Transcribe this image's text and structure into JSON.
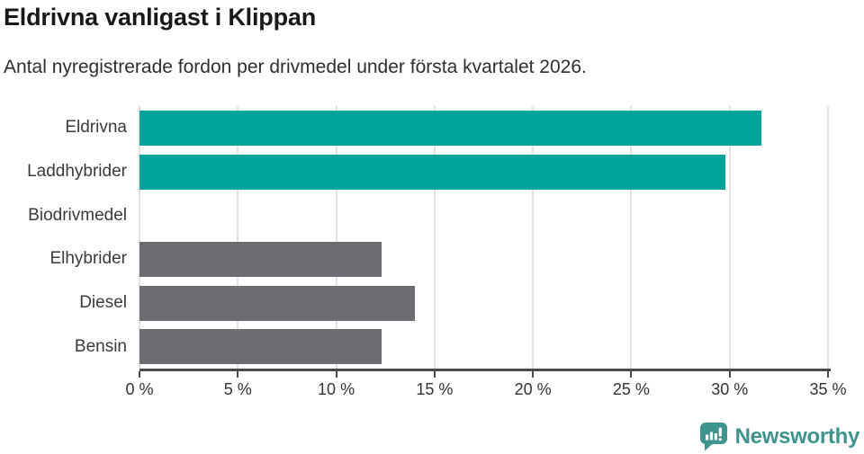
{
  "title": "Eldrivna vanligast i Klippan",
  "subtitle": "Antal nyregistrerade fordon per drivmedel under första kvartalet 2026.",
  "chart_data": {
    "type": "bar",
    "orientation": "horizontal",
    "title": "Eldrivna vanligast i Klippan",
    "subtitle": "Antal nyregistrerade fordon per drivmedel under första kvartalet 2026.",
    "categories": [
      "Eldrivna",
      "Laddhybrider",
      "Biodrivmedel",
      "Elhybrider",
      "Diesel",
      "Bensin"
    ],
    "values": [
      31.6,
      29.8,
      0,
      12.3,
      14.0,
      12.3
    ],
    "unit": "%",
    "xlim": [
      0,
      35
    ],
    "xticks": [
      0,
      5,
      10,
      15,
      20,
      25,
      30,
      35
    ],
    "xtick_labels": [
      "0 %",
      "5 %",
      "10 %",
      "15 %",
      "20 %",
      "25 %",
      "30 %",
      "35 %"
    ],
    "bar_colors": [
      "#00a49b",
      "#00a49b",
      "#6e6c73",
      "#6e6c73",
      "#6e6c73",
      "#6e6c73"
    ],
    "grid": true,
    "legend": false
  },
  "colors": {
    "accent_teal": "#00a49b",
    "bar_gray": "#6e6c73",
    "axis": "#4a4a4a",
    "gridline": "#e2e2e2",
    "title_text": "#191919",
    "subtitle_text": "#2e2e2e",
    "label_text": "#3a3a3a",
    "tick_text": "#333333",
    "brand_teal": "#3e948d"
  },
  "footer": {
    "brand": "Newsworthy",
    "logo_icon": "newsworthy-speech-bubble-bar-chart-icon"
  }
}
